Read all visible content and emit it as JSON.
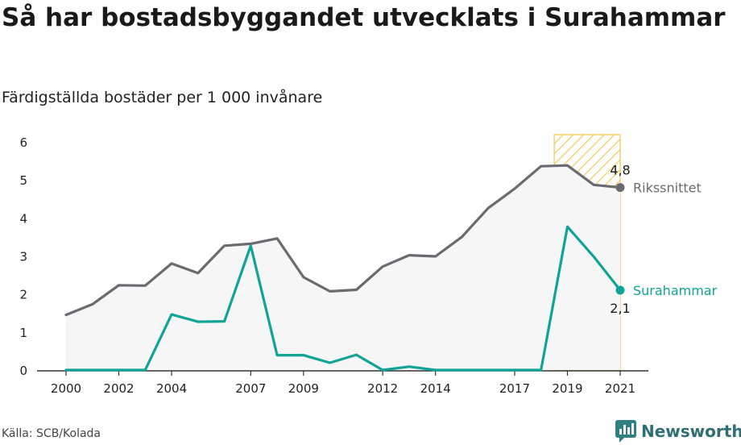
{
  "header": {
    "title": "Så har bostadsbyggandet utvecklats i Surahammar",
    "subtitle": "Färdigställda bostäder per 1 000 invånare"
  },
  "footer": {
    "source": "Källa: SCB/Kolada",
    "brand": "Newsworthy"
  },
  "colors": {
    "national": "#6b6a70",
    "municipality": "#10a396",
    "highlight": "#f3c64f",
    "area_fill": "#f6f6f7",
    "axis": "#333333"
  },
  "chart_data": {
    "type": "line",
    "title": "Så har bostadsbyggandet utvecklats i Surahammar",
    "subtitle": "Färdigställda bostäder per 1 000 invånare",
    "xlim": [
      2000,
      2021
    ],
    "ylim": [
      0,
      6
    ],
    "y_ticks": [
      "0",
      "1",
      "2",
      "3",
      "4",
      "5",
      "6"
    ],
    "x_ticks": [
      "2000",
      "2002",
      "2004",
      "2007",
      "2009",
      "2012",
      "2014",
      "2017",
      "2019",
      "2021"
    ],
    "x": [
      2000,
      2001,
      2002,
      2003,
      2004,
      2005,
      2006,
      2007,
      2008,
      2009,
      2010,
      2011,
      2012,
      2013,
      2014,
      2015,
      2016,
      2017,
      2018,
      2019,
      2020,
      2021
    ],
    "series": [
      {
        "name": "Rikssnittet",
        "values": [
          1.45,
          1.73,
          2.23,
          2.22,
          2.8,
          2.55,
          3.27,
          3.32,
          3.46,
          2.44,
          2.07,
          2.11,
          2.72,
          3.02,
          2.99,
          3.5,
          4.26,
          4.77,
          5.36,
          5.38,
          4.87,
          4.8
        ],
        "end_label": "4,8",
        "area": true
      },
      {
        "name": "Surahammar",
        "values": [
          0,
          0,
          0,
          0,
          1.46,
          1.27,
          1.28,
          3.27,
          0.39,
          0.39,
          0.19,
          0.4,
          0,
          0.09,
          0,
          0,
          0,
          0,
          0,
          3.77,
          2.98,
          2.1
        ],
        "end_label": "2,1",
        "area": false
      }
    ],
    "highlight_range": [
      2018.5,
      2021
    ],
    "grid": false,
    "legend": "direct-labels-right"
  }
}
